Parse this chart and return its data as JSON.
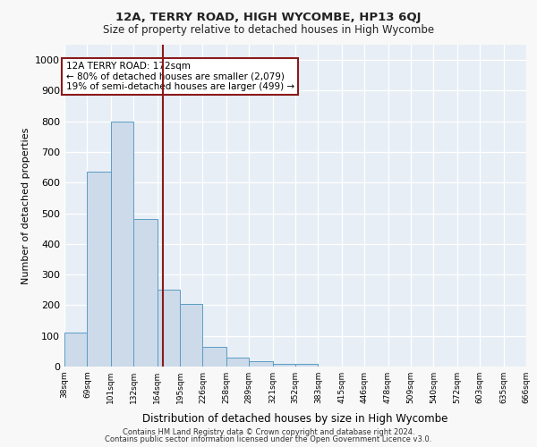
{
  "title": "12A, TERRY ROAD, HIGH WYCOMBE, HP13 6QJ",
  "subtitle": "Size of property relative to detached houses in High Wycombe",
  "xlabel": "Distribution of detached houses by size in High Wycombe",
  "ylabel": "Number of detached properties",
  "bin_edges": [
    38,
    69,
    101,
    132,
    164,
    195,
    226,
    258,
    289,
    321,
    352,
    383,
    415,
    446,
    478,
    509,
    540,
    572,
    603,
    635,
    666
  ],
  "bar_heights": [
    110,
    635,
    800,
    480,
    250,
    205,
    63,
    28,
    17,
    10,
    10,
    0,
    0,
    0,
    0,
    0,
    0,
    0,
    0,
    0
  ],
  "bar_color": "#ccdaea",
  "bar_edge_color": "#5b9dc4",
  "property_size": 172,
  "red_line_color": "#8b1a1a",
  "annotation_line1": "12A TERRY ROAD: 172sqm",
  "annotation_line2": "← 80% of detached houses are smaller (2,079)",
  "annotation_line3": "19% of semi-detached houses are larger (499) →",
  "annotation_box_color": "#8b1a1a",
  "ylim": [
    0,
    1050
  ],
  "yticks": [
    0,
    100,
    200,
    300,
    400,
    500,
    600,
    700,
    800,
    900,
    1000
  ],
  "background_color": "#e8eef5",
  "grid_color": "#ffffff",
  "footer_line1": "Contains HM Land Registry data © Crown copyright and database right 2024.",
  "footer_line2": "Contains public sector information licensed under the Open Government Licence v3.0."
}
